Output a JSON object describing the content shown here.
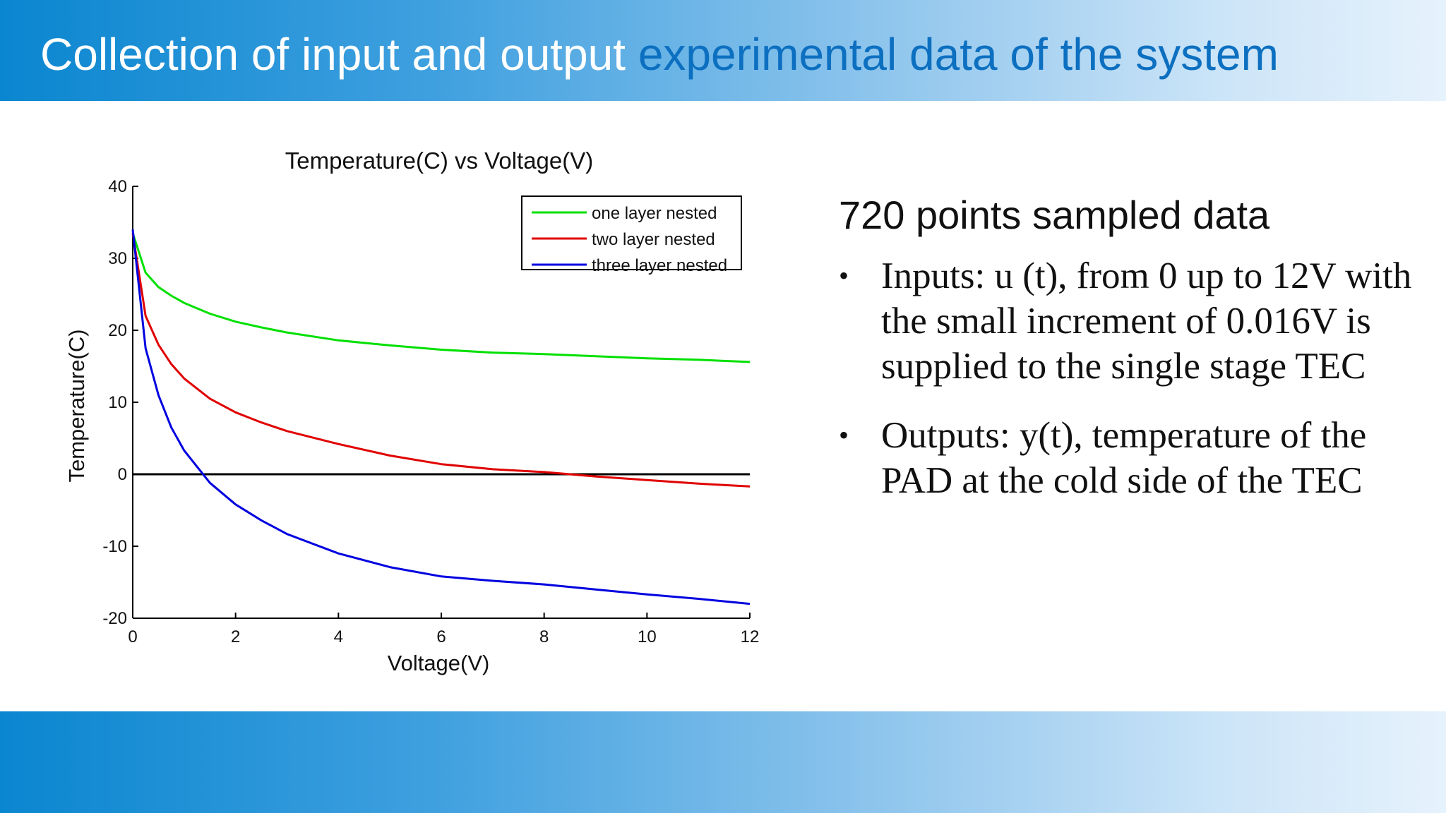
{
  "header": {
    "title_part1": "Collection of input and output ",
    "title_part2": "experimental data of the system",
    "colors": {
      "title_white": "#ffffff",
      "title_blue": "#0c6fc0",
      "band_start": "#0a86d0",
      "band_end": "#e6f2fc"
    }
  },
  "info": {
    "heading": "720 points sampled data",
    "bullets": [
      "Inputs: u (t), from 0 up to 12V with the small increment of 0.016V is supplied to the single stage TEC",
      "Outputs: y(t), temperature of the PAD at the cold side of the TEC"
    ],
    "bullet_symbol": "•"
  },
  "chart_data": {
    "type": "line",
    "title": "Temperature(C) vs Voltage(V)",
    "xlabel": "Voltage(V)",
    "ylabel": "Temperature(C)",
    "xlim": [
      0,
      12
    ],
    "ylim": [
      -20,
      40
    ],
    "x_ticks": [
      0,
      2,
      4,
      6,
      8,
      10,
      12
    ],
    "y_ticks": [
      -20,
      -10,
      0,
      10,
      20,
      30,
      40
    ],
    "x_tick_labels": [
      "0",
      "2",
      "4",
      "6",
      "8",
      "10",
      "12"
    ],
    "y_tick_labels": [
      "-20",
      "-10",
      "0",
      "10",
      "20",
      "30",
      "40"
    ],
    "grid": false,
    "legend_position": "top-right",
    "zero_line": true,
    "x": [
      0,
      0.25,
      0.5,
      0.75,
      1,
      1.5,
      2,
      2.5,
      3,
      4,
      5,
      6,
      7,
      8,
      9,
      10,
      11,
      12
    ],
    "series": [
      {
        "name": "one layer nested",
        "color": "#00e000",
        "values": [
          33.5,
          28,
          26,
          24.8,
          23.8,
          22.3,
          21.2,
          20.4,
          19.7,
          18.6,
          17.9,
          17.3,
          16.9,
          16.7,
          16.4,
          16.1,
          15.9,
          15.6
        ]
      },
      {
        "name": "two layer nested",
        "color": "#e00000",
        "values": [
          33.5,
          22,
          18,
          15.3,
          13.3,
          10.5,
          8.6,
          7.2,
          6,
          4.2,
          2.6,
          1.4,
          0.7,
          0.3,
          -0.3,
          -0.8,
          -1.3,
          -1.7
        ]
      },
      {
        "name": "three layer nested",
        "color": "#0000e0",
        "values": [
          34,
          17.5,
          11,
          6.5,
          3.3,
          -1.2,
          -4.2,
          -6.4,
          -8.3,
          -11,
          -12.9,
          -14.2,
          -14.8,
          -15.3,
          -16,
          -16.7,
          -17.3,
          -18
        ]
      }
    ]
  }
}
